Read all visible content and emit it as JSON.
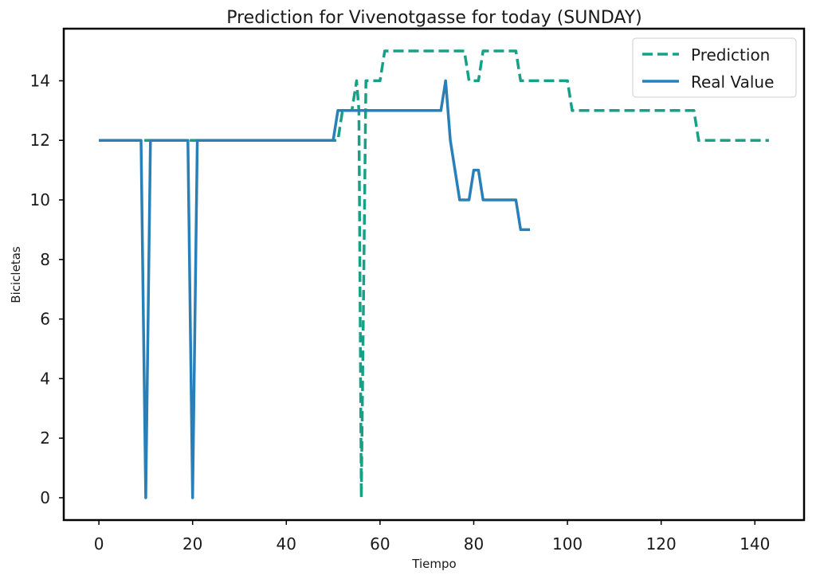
{
  "chart_data": {
    "type": "line",
    "title": "Prediction for Vivenotgasse for today (SUNDAY)",
    "xlabel": "Tiempo",
    "ylabel": "Bicicletas",
    "xlim": [
      -7.5,
      150.5
    ],
    "ylim": [
      -0.75,
      15.75
    ],
    "xticks": [
      0,
      20,
      40,
      60,
      80,
      100,
      120,
      140
    ],
    "yticks": [
      0,
      2,
      4,
      6,
      8,
      10,
      12,
      14
    ],
    "grid": false,
    "legend_position": "top-right",
    "series": [
      {
        "name": "Prediction",
        "style": "dashed",
        "color": "#16a085",
        "points": [
          [
            0,
            12
          ],
          [
            51,
            12
          ],
          [
            52,
            13
          ],
          [
            54,
            13
          ],
          [
            55,
            14
          ],
          [
            55.5,
            13
          ],
          [
            56,
            0
          ],
          [
            57,
            14
          ],
          [
            60,
            14
          ],
          [
            61,
            15
          ],
          [
            78,
            15
          ],
          [
            79,
            14
          ],
          [
            80,
            14
          ],
          [
            81,
            14
          ],
          [
            82,
            15
          ],
          [
            89,
            15
          ],
          [
            90,
            14
          ],
          [
            100,
            14
          ],
          [
            101,
            13
          ],
          [
            127,
            13
          ],
          [
            128,
            12
          ],
          [
            143,
            12
          ]
        ]
      },
      {
        "name": "Real Value",
        "style": "solid",
        "color": "#2980b9",
        "points": [
          [
            0,
            12
          ],
          [
            9,
            12
          ],
          [
            10,
            0
          ],
          [
            11,
            12
          ],
          [
            19,
            12
          ],
          [
            20,
            0
          ],
          [
            21,
            12
          ],
          [
            50,
            12
          ],
          [
            51,
            13
          ],
          [
            73,
            13
          ],
          [
            74,
            14
          ],
          [
            75,
            12
          ],
          [
            77,
            10
          ],
          [
            79,
            10
          ],
          [
            80,
            11
          ],
          [
            81,
            11
          ],
          [
            82,
            10
          ],
          [
            89,
            10
          ],
          [
            90,
            9
          ],
          [
            92,
            9
          ]
        ]
      }
    ]
  }
}
